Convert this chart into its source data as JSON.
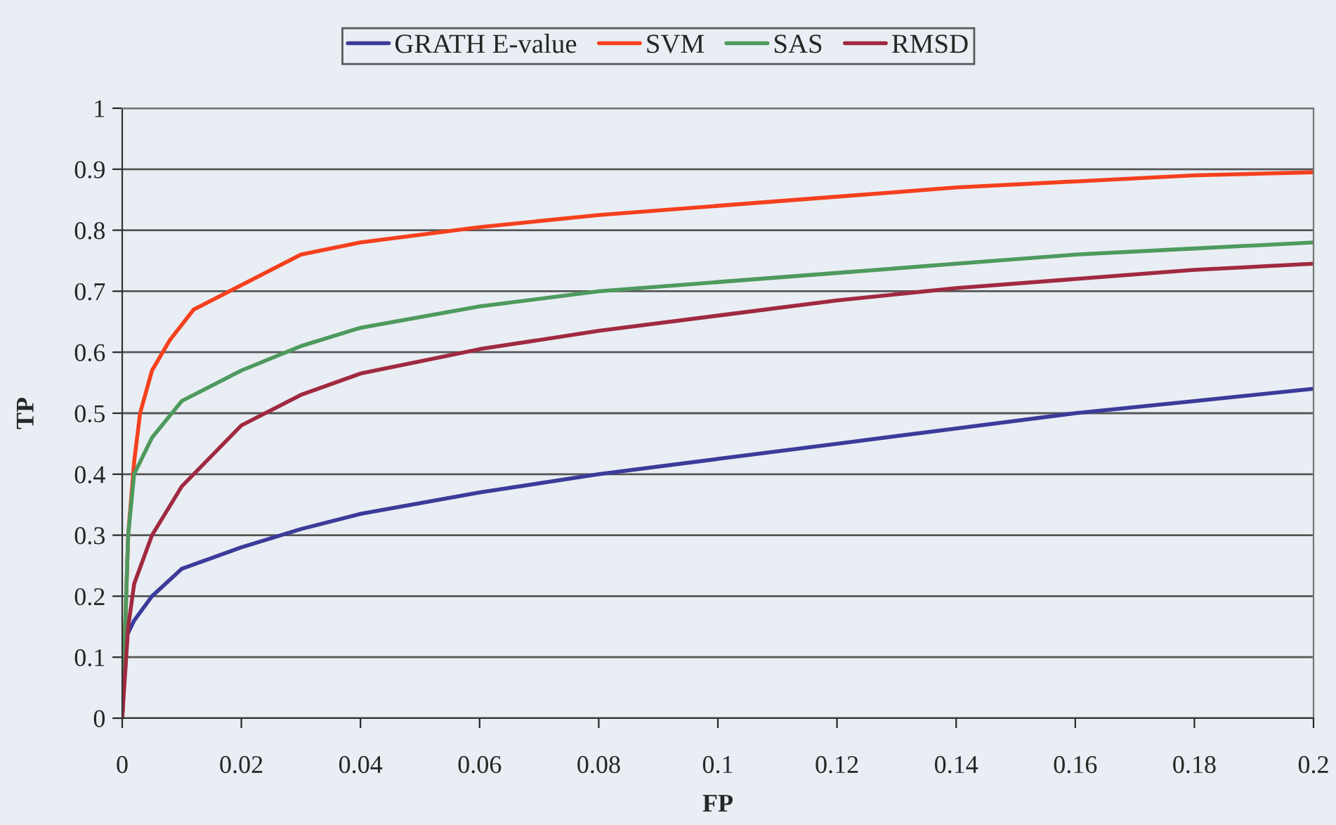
{
  "chart_data": {
    "type": "line",
    "xlabel": "FP",
    "ylabel": "TP",
    "xlim": [
      0,
      0.2
    ],
    "ylim": [
      0,
      1
    ],
    "xticks": [
      0,
      0.02,
      0.04,
      0.06,
      0.08,
      0.1,
      0.12,
      0.14,
      0.16,
      0.18,
      0.2
    ],
    "yticks": [
      0,
      0.1,
      0.2,
      0.3,
      0.4,
      0.5,
      0.6,
      0.7,
      0.8,
      0.9,
      1
    ],
    "grid": "y",
    "legend": "top",
    "marker": "none",
    "line_style": "solid",
    "series": [
      {
        "name": "GRATH E-value",
        "color": "#3b3b9a",
        "x": [
          0,
          0.0005,
          0.002,
          0.005,
          0.01,
          0.02,
          0.03,
          0.04,
          0.06,
          0.08,
          0.1,
          0.12,
          0.14,
          0.16,
          0.18,
          0.2
        ],
        "values": [
          0,
          0.13,
          0.16,
          0.2,
          0.245,
          0.28,
          0.31,
          0.335,
          0.37,
          0.4,
          0.425,
          0.45,
          0.475,
          0.5,
          0.52,
          0.54
        ]
      },
      {
        "name": "SVM",
        "color": "#f5401e",
        "x": [
          0,
          0.001,
          0.002,
          0.003,
          0.005,
          0.008,
          0.012,
          0.02,
          0.03,
          0.04,
          0.06,
          0.08,
          0.1,
          0.12,
          0.14,
          0.16,
          0.18,
          0.2
        ],
        "values": [
          0,
          0.3,
          0.42,
          0.5,
          0.57,
          0.62,
          0.67,
          0.71,
          0.76,
          0.78,
          0.805,
          0.825,
          0.84,
          0.855,
          0.87,
          0.88,
          0.89,
          0.895
        ]
      },
      {
        "name": "SAS",
        "color": "#4e9a5e",
        "x": [
          0,
          0.001,
          0.002,
          0.005,
          0.01,
          0.02,
          0.03,
          0.04,
          0.06,
          0.08,
          0.1,
          0.12,
          0.14,
          0.16,
          0.18,
          0.2
        ],
        "values": [
          0,
          0.3,
          0.4,
          0.46,
          0.52,
          0.57,
          0.61,
          0.64,
          0.675,
          0.7,
          0.715,
          0.73,
          0.745,
          0.76,
          0.77,
          0.78
        ]
      },
      {
        "name": "RMSD",
        "color": "#a02a40",
        "x": [
          0,
          0.001,
          0.002,
          0.005,
          0.01,
          0.02,
          0.03,
          0.04,
          0.06,
          0.08,
          0.1,
          0.12,
          0.14,
          0.16,
          0.18,
          0.2
        ],
        "values": [
          0,
          0.15,
          0.22,
          0.3,
          0.38,
          0.48,
          0.53,
          0.565,
          0.605,
          0.635,
          0.66,
          0.685,
          0.705,
          0.72,
          0.735,
          0.745
        ]
      }
    ]
  }
}
